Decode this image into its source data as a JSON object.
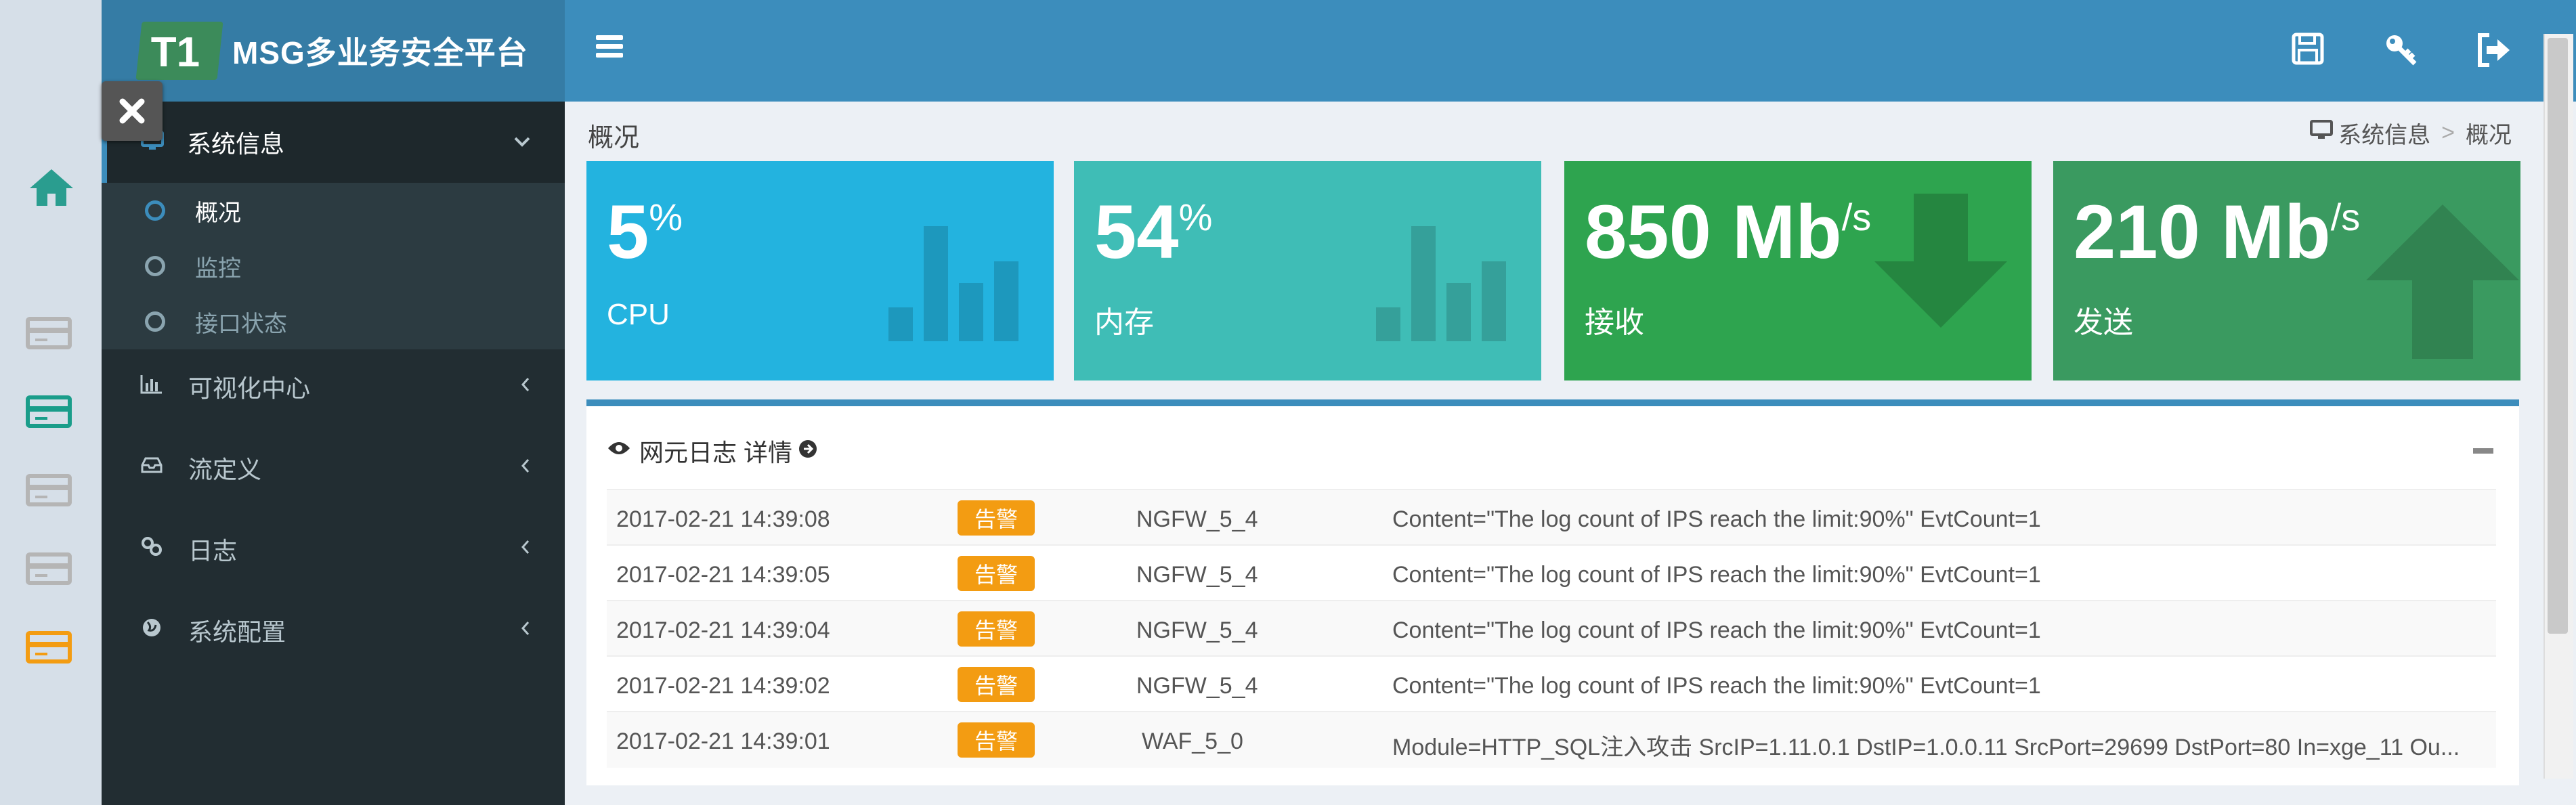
{
  "app": {
    "logo_mark": "T1",
    "title": "MSG多业务安全平台"
  },
  "sidebar": {
    "menu_top": {
      "label": "系统信息"
    },
    "sub_items": [
      {
        "label": "概况"
      },
      {
        "label": "监控"
      },
      {
        "label": "接口状态"
      }
    ],
    "items": [
      {
        "label": "可视化中心",
        "icon": "bar-chart-icon"
      },
      {
        "label": "流定义",
        "icon": "inbox-icon"
      },
      {
        "label": "日志",
        "icon": "link-icon"
      },
      {
        "label": "系统配置",
        "icon": "globe-icon"
      }
    ]
  },
  "header": {
    "icons": [
      "save-icon",
      "key-icon",
      "sign-out-icon"
    ]
  },
  "page": {
    "title": "概况",
    "breadcrumb": [
      "系统信息",
      "概况"
    ]
  },
  "tiles": [
    {
      "value": "5",
      "unit": "%",
      "label": "CPU",
      "color": "#23b3df"
    },
    {
      "value": "54",
      "unit": "%",
      "label": "内存",
      "color": "#3fbdb6"
    },
    {
      "value": "850 Mb",
      "unit": "/s",
      "label": "接收",
      "color": "#2ea44f"
    },
    {
      "value": "210 Mb",
      "unit": "/s",
      "label": "发送",
      "color": "#3a9a60"
    }
  ],
  "log_panel": {
    "title": "网元日志 详情",
    "rows": [
      {
        "time": "2017-02-21 14:39:08",
        "level": "告警",
        "device": "NGFW_5_4",
        "content": "Content=\"The log count of IPS reach the limit:90%\" EvtCount=1"
      },
      {
        "time": "2017-02-21 14:39:05",
        "level": "告警",
        "device": "NGFW_5_4",
        "content": "Content=\"The log count of IPS reach the limit:90%\" EvtCount=1"
      },
      {
        "time": "2017-02-21 14:39:04",
        "level": "告警",
        "device": "NGFW_5_4",
        "content": "Content=\"The log count of IPS reach the limit:90%\" EvtCount=1"
      },
      {
        "time": "2017-02-21 14:39:02",
        "level": "告警",
        "device": "NGFW_5_4",
        "content": "Content=\"The log count of IPS reach the limit:90%\" EvtCount=1"
      },
      {
        "time": "2017-02-21 14:39:01",
        "level": "告警",
        "device": "WAF_5_0",
        "content": "Module=HTTP_SQL注入攻击 SrcIP=1.11.0.1 DstIP=1.0.0.11 SrcPort=29699 DstPort=80 In=xge_11 Ou..."
      }
    ]
  },
  "colors": {
    "header": "#3c8dbc",
    "sidebar": "#222d32",
    "badge": "#f39c12"
  }
}
